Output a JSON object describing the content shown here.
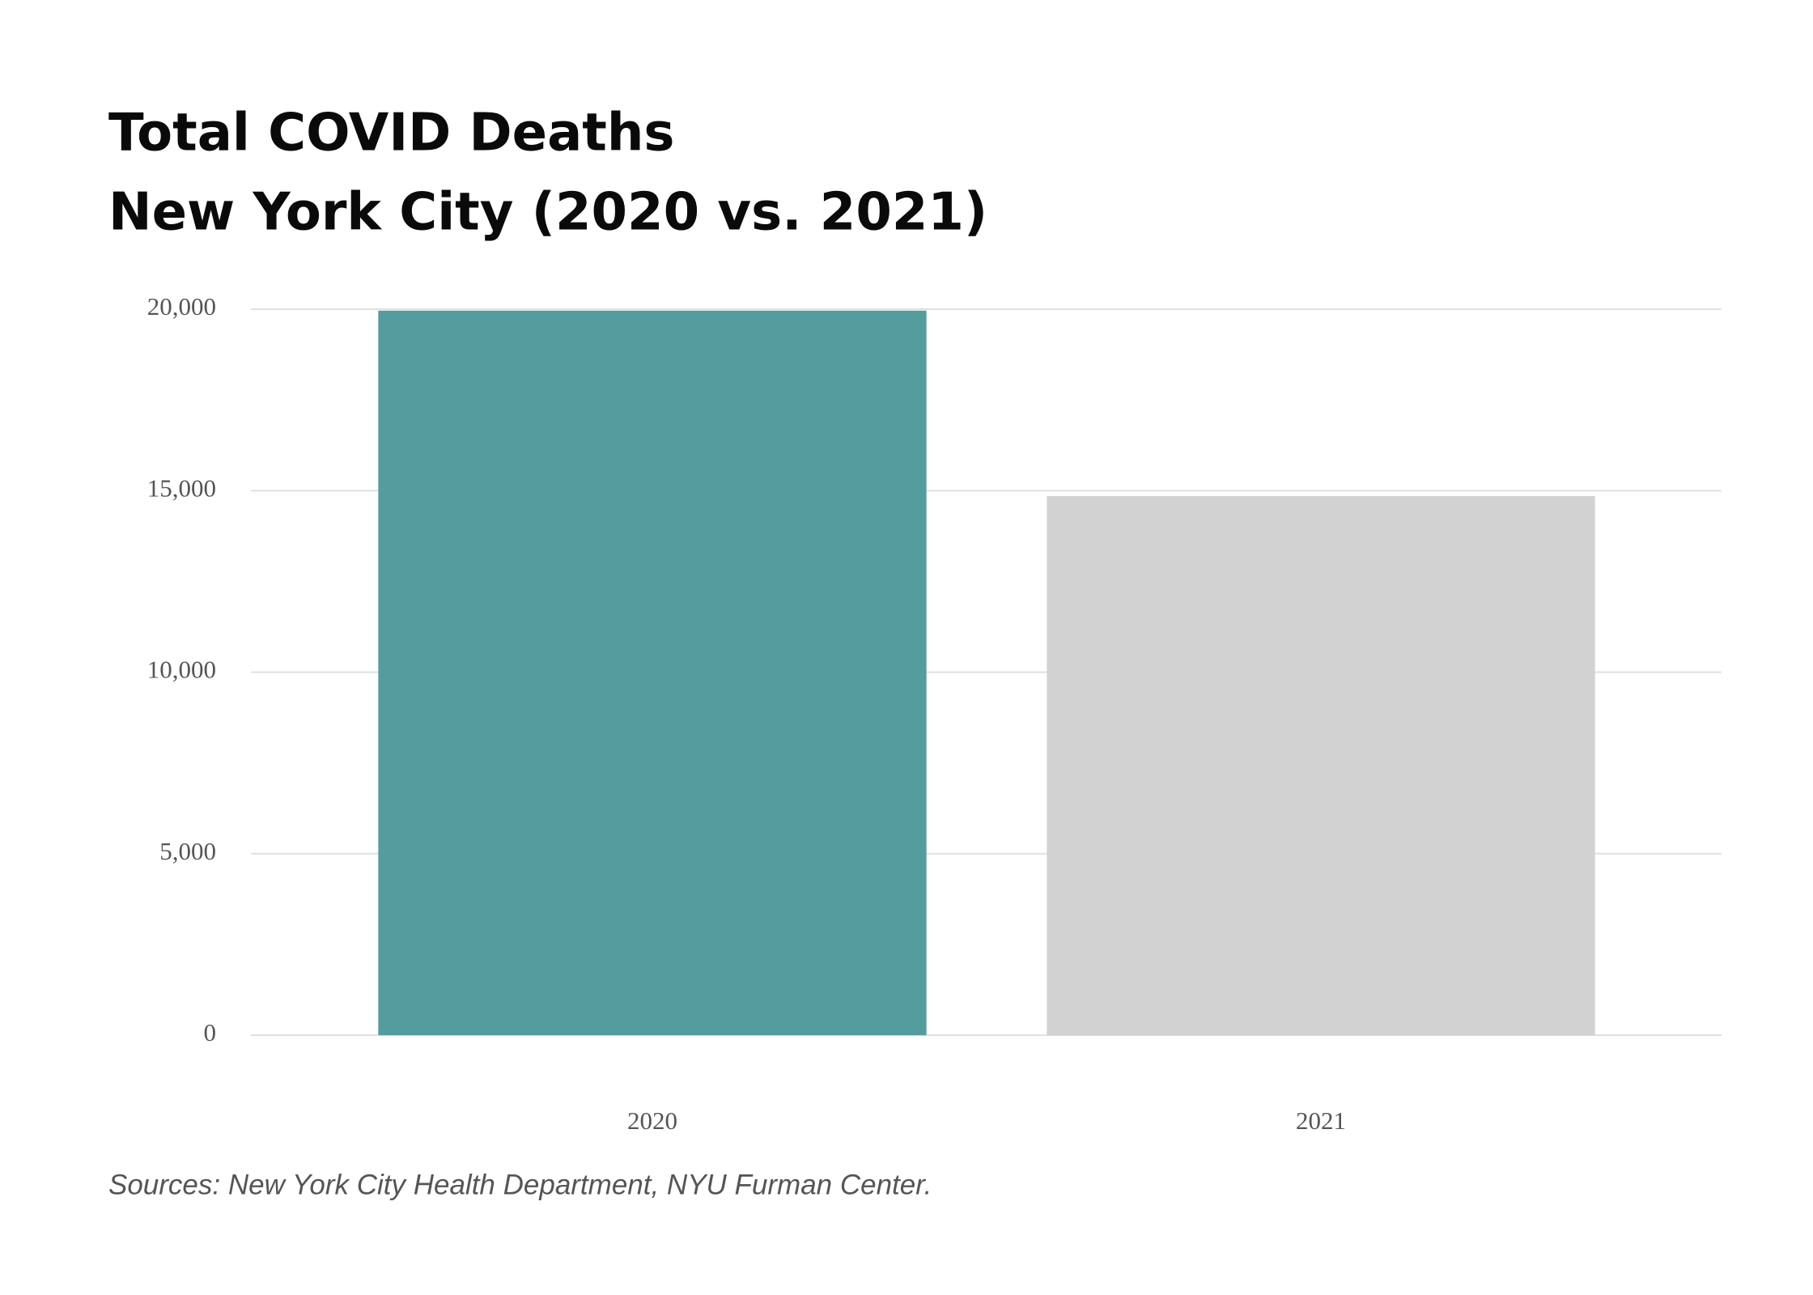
{
  "chart_data": {
    "type": "bar",
    "title": "Total COVID Deaths",
    "subtitle": "New York City (2020 vs. 2021)",
    "categories": [
      "2020",
      "2021"
    ],
    "values": [
      19960,
      14850
    ],
    "colors": [
      "#559c9e",
      "#d2d2d2"
    ],
    "ylim": [
      0,
      20000
    ],
    "yticks": [
      0,
      {
        "value": 5000,
        "label": "5,000"
      },
      {
        "value": 10000,
        "label": "10,000"
      },
      {
        "value": 15000,
        "label": "15,000"
      },
      {
        "value": 20000,
        "label": "20,000"
      }
    ],
    "grid": true,
    "source": "Sources: New York City Health Department, NYU Furman Center."
  }
}
